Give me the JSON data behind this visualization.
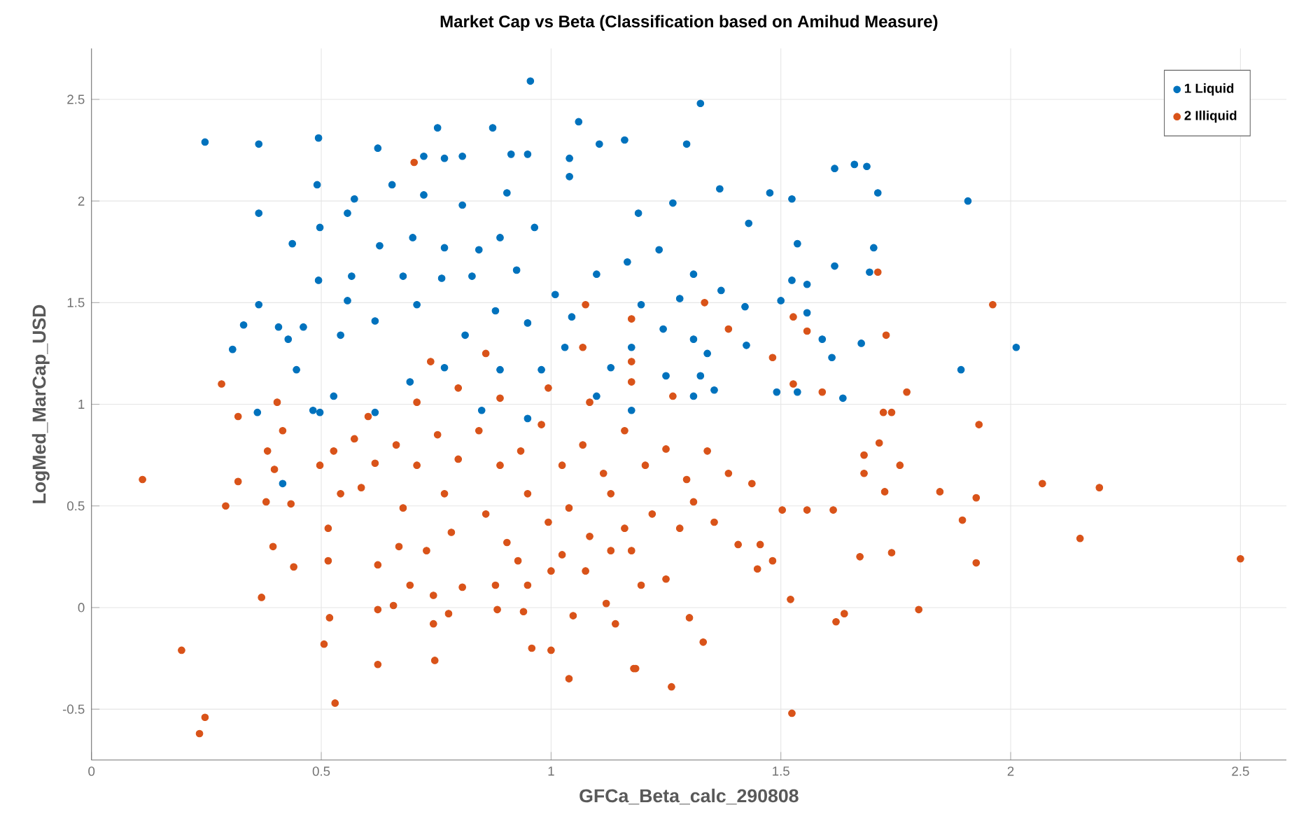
{
  "chart_data": {
    "type": "scatter",
    "title": "Market Cap vs Beta (Classification based on Amihud Measure)",
    "xlabel": "GFCa_Beta_calc_290808",
    "ylabel": "LogMed_MarCap_USD",
    "xlim": [
      0,
      2.6
    ],
    "ylim": [
      -0.75,
      2.75
    ],
    "xticks": [
      0,
      0.5,
      1,
      1.5,
      2,
      2.5
    ],
    "yticks": [
      -0.5,
      0,
      0.5,
      1,
      1.5,
      2,
      2.5
    ],
    "grid": true,
    "legend": "top right",
    "marker": "circle",
    "series": [
      {
        "name": "1 Liquid",
        "color": "#0072bd",
        "x": [
          0.247,
          0.364,
          0.364,
          0.364,
          0.494,
          0.491,
          0.497,
          0.623,
          0.654,
          0.572,
          0.557,
          0.723,
          0.753,
          0.768,
          0.807,
          0.873,
          0.913,
          0.949,
          0.955,
          1.06,
          1.105,
          1.16,
          1.04,
          1.04,
          0.807,
          0.904,
          0.964,
          0.723,
          0.699,
          0.627,
          0.566,
          0.494,
          0.437,
          0.407,
          0.331,
          0.307,
          0.428,
          0.446,
          0.482,
          0.461,
          0.557,
          0.542,
          0.617,
          0.708,
          0.678,
          0.768,
          0.843,
          0.889,
          0.762,
          0.828,
          0.879,
          0.925,
          0.813,
          0.949,
          1.009,
          1.045,
          1.099,
          1.03,
          0.979,
          0.889,
          0.768,
          0.693,
          0.617,
          0.527,
          0.849,
          0.949,
          1.099,
          1.19,
          1.235,
          1.265,
          1.295,
          1.166,
          1.196,
          1.28,
          1.244,
          1.175,
          1.31,
          1.325,
          1.25,
          1.13,
          1.175,
          1.31,
          1.325,
          1.367,
          1.476,
          1.524,
          1.617,
          1.66,
          1.687,
          1.711,
          1.907,
          1.43,
          1.536,
          1.617,
          1.702,
          1.693,
          1.524,
          1.557,
          1.5,
          1.557,
          1.37,
          1.422,
          1.59,
          1.675,
          2.012,
          1.892,
          1.611,
          1.425,
          1.34,
          1.355,
          1.491,
          1.536,
          1.635,
          1.31,
          0.361,
          0.416,
          0.497
        ],
        "values": [
          2.29,
          2.28,
          1.94,
          1.49,
          2.31,
          2.08,
          1.87,
          2.26,
          2.08,
          2.01,
          1.94,
          2.22,
          2.36,
          2.21,
          2.22,
          2.36,
          2.23,
          2.23,
          2.59,
          2.39,
          2.28,
          2.3,
          2.21,
          2.12,
          1.98,
          2.04,
          1.87,
          2.03,
          1.82,
          1.78,
          1.63,
          1.61,
          1.79,
          1.38,
          1.39,
          1.27,
          1.32,
          1.17,
          0.97,
          1.38,
          1.51,
          1.34,
          1.41,
          1.49,
          1.63,
          1.77,
          1.76,
          1.82,
          1.62,
          1.63,
          1.46,
          1.66,
          1.34,
          1.4,
          1.54,
          1.43,
          1.64,
          1.28,
          1.17,
          1.17,
          1.18,
          1.11,
          0.96,
          1.04,
          0.97,
          0.93,
          1.04,
          1.94,
          1.76,
          1.99,
          2.28,
          1.7,
          1.49,
          1.52,
          1.37,
          1.28,
          1.64,
          1.14,
          1.14,
          1.18,
          0.97,
          1.04,
          2.48,
          2.06,
          2.04,
          2.01,
          2.16,
          2.18,
          2.17,
          2.04,
          2.0,
          1.89,
          1.79,
          1.68,
          1.77,
          1.65,
          1.61,
          1.59,
          1.51,
          1.45,
          1.56,
          1.48,
          1.32,
          1.3,
          1.28,
          1.17,
          1.23,
          1.29,
          1.25,
          1.07,
          1.06,
          1.06,
          1.03,
          1.32,
          0.96,
          0.61,
          0.96
        ]
      },
      {
        "name": "2 Illiquid",
        "color": "#d95319",
        "x": [
          0.111,
          0.196,
          0.235,
          0.247,
          0.292,
          0.319,
          0.319,
          0.404,
          0.416,
          0.383,
          0.398,
          0.38,
          0.395,
          0.44,
          0.37,
          0.434,
          0.515,
          0.515,
          0.518,
          0.506,
          0.53,
          0.623,
          0.623,
          0.623,
          0.657,
          0.693,
          0.669,
          0.729,
          0.744,
          0.744,
          0.747,
          0.777,
          0.807,
          0.883,
          0.879,
          0.94,
          0.958,
          1.0,
          1.039,
          1.048,
          1.075,
          1.0,
          0.949,
          0.928,
          1.024,
          1.12,
          1.14,
          1.18,
          1.13,
          1.16,
          1.184,
          1.262,
          1.331,
          1.301,
          1.196,
          1.25,
          1.521,
          1.524,
          1.62,
          1.638,
          1.8,
          1.672,
          1.741,
          1.925,
          2.151,
          2.5,
          2.069,
          2.193,
          1.895,
          1.925,
          1.846,
          1.726,
          1.759,
          1.681,
          1.681,
          1.714,
          1.931,
          1.503,
          1.557,
          1.614,
          1.437,
          1.455,
          1.449,
          1.407,
          1.482,
          1.961,
          1.729,
          1.774,
          1.527,
          1.557,
          1.711,
          1.527,
          1.59,
          1.723,
          1.741,
          1.482,
          1.334,
          1.386,
          1.175,
          0.527,
          0.572,
          0.617,
          0.663,
          0.708,
          0.753,
          0.798,
          0.843,
          0.889,
          0.934,
          0.979,
          1.024,
          1.069,
          1.114,
          1.16,
          1.205,
          1.25,
          1.295,
          1.34,
          1.386,
          0.587,
          0.678,
          0.768,
          0.858,
          0.949,
          1.039,
          1.13,
          1.22,
          1.31,
          0.602,
          0.708,
          0.798,
          0.889,
          0.994,
          1.084,
          1.175,
          1.265,
          0.738,
          0.858,
          1.069,
          1.175,
          0.783,
          0.904,
          0.994,
          1.084,
          1.175,
          1.28,
          1.355,
          0.542,
          0.497,
          0.702,
          0.283,
          1.075
        ],
        "values": [
          0.63,
          -0.21,
          -0.62,
          -0.54,
          0.5,
          0.62,
          0.94,
          1.01,
          0.87,
          0.77,
          0.68,
          0.52,
          0.3,
          0.2,
          0.05,
          0.51,
          0.39,
          0.23,
          -0.05,
          -0.18,
          -0.47,
          -0.28,
          -0.01,
          0.21,
          0.01,
          0.11,
          0.3,
          0.28,
          0.06,
          -0.08,
          -0.26,
          -0.03,
          0.1,
          -0.01,
          0.11,
          -0.02,
          -0.2,
          -0.21,
          -0.35,
          -0.04,
          0.18,
          0.18,
          0.11,
          0.23,
          0.26,
          0.02,
          -0.08,
          -0.3,
          0.28,
          0.39,
          -0.3,
          -0.39,
          -0.17,
          -0.05,
          0.11,
          0.14,
          0.04,
          -0.52,
          -0.07,
          -0.03,
          -0.01,
          0.25,
          0.27,
          0.22,
          0.34,
          0.24,
          0.61,
          0.59,
          0.43,
          0.54,
          0.57,
          0.57,
          0.7,
          0.66,
          0.75,
          0.81,
          0.9,
          0.48,
          0.48,
          0.48,
          0.61,
          0.31,
          0.19,
          0.31,
          0.23,
          1.49,
          1.34,
          1.06,
          1.43,
          1.36,
          1.65,
          1.1,
          1.06,
          0.96,
          0.96,
          1.23,
          1.5,
          1.37,
          1.42,
          0.77,
          0.83,
          0.71,
          0.8,
          0.7,
          0.85,
          0.73,
          0.87,
          0.7,
          0.77,
          0.9,
          0.7,
          0.8,
          0.66,
          0.87,
          0.7,
          0.78,
          0.63,
          0.77,
          0.66,
          0.59,
          0.49,
          0.56,
          0.46,
          0.56,
          0.49,
          0.56,
          0.46,
          0.52,
          0.94,
          1.01,
          1.08,
          1.03,
          1.08,
          1.01,
          1.11,
          1.04,
          1.21,
          1.25,
          1.28,
          1.21,
          0.37,
          0.32,
          0.42,
          0.35,
          0.28,
          0.39,
          0.42,
          0.56,
          0.7,
          2.19,
          1.1,
          1.49
        ]
      }
    ]
  }
}
